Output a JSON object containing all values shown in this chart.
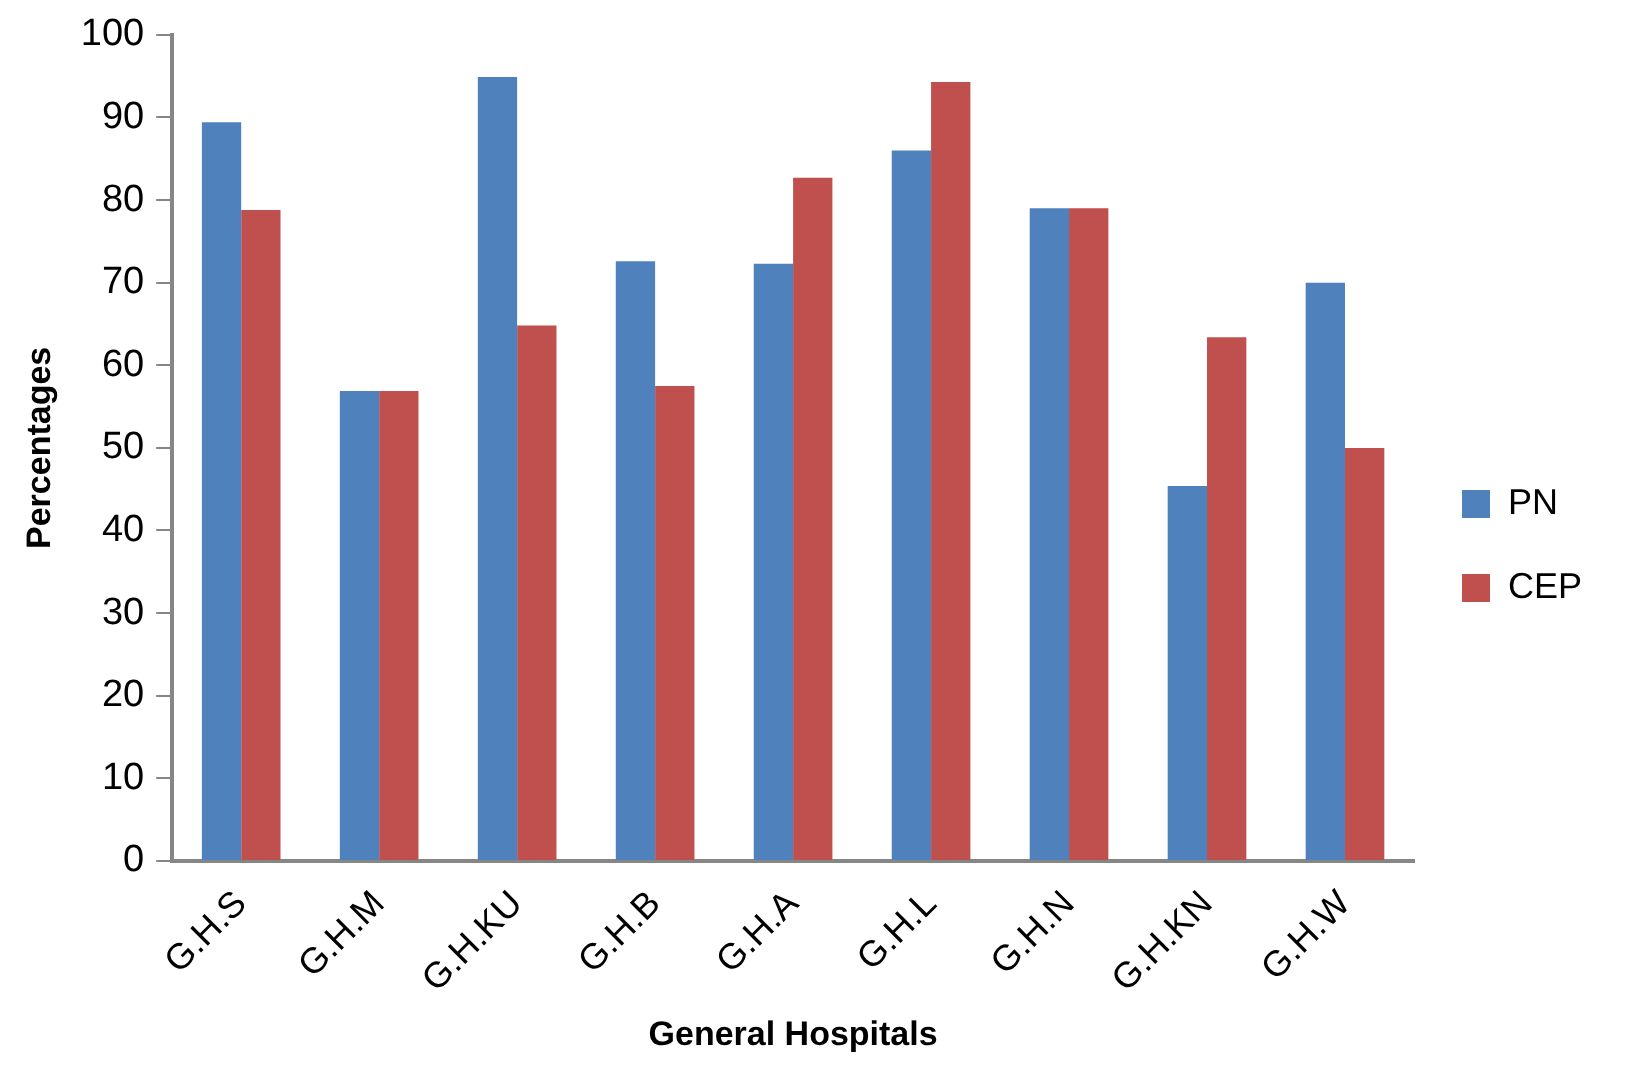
{
  "chart_data": {
    "type": "bar",
    "xlabel": "General Hospitals",
    "ylabel": "Percentages",
    "categories": [
      "G.H.S",
      "G.H.M",
      "G.H.KU",
      "G.H.B",
      "G.H.A",
      "G.H.L",
      "G.H.N",
      "G.H.KN",
      "G.H.W"
    ],
    "series": [
      {
        "name": "PN",
        "color": "#4f81bd",
        "values": [
          89.4,
          56.9,
          94.9,
          72.6,
          72.3,
          86.0,
          79.0,
          45.4,
          70.0
        ]
      },
      {
        "name": "CEP",
        "color": "#c0504d",
        "values": [
          78.8,
          56.9,
          64.8,
          57.5,
          82.7,
          94.3,
          79.0,
          63.4,
          50.0
        ]
      }
    ],
    "ylim": [
      0,
      100
    ],
    "yticks": [
      0,
      10,
      20,
      30,
      40,
      50,
      60,
      70,
      80,
      90,
      100
    ],
    "grid": false,
    "legend": "right"
  }
}
